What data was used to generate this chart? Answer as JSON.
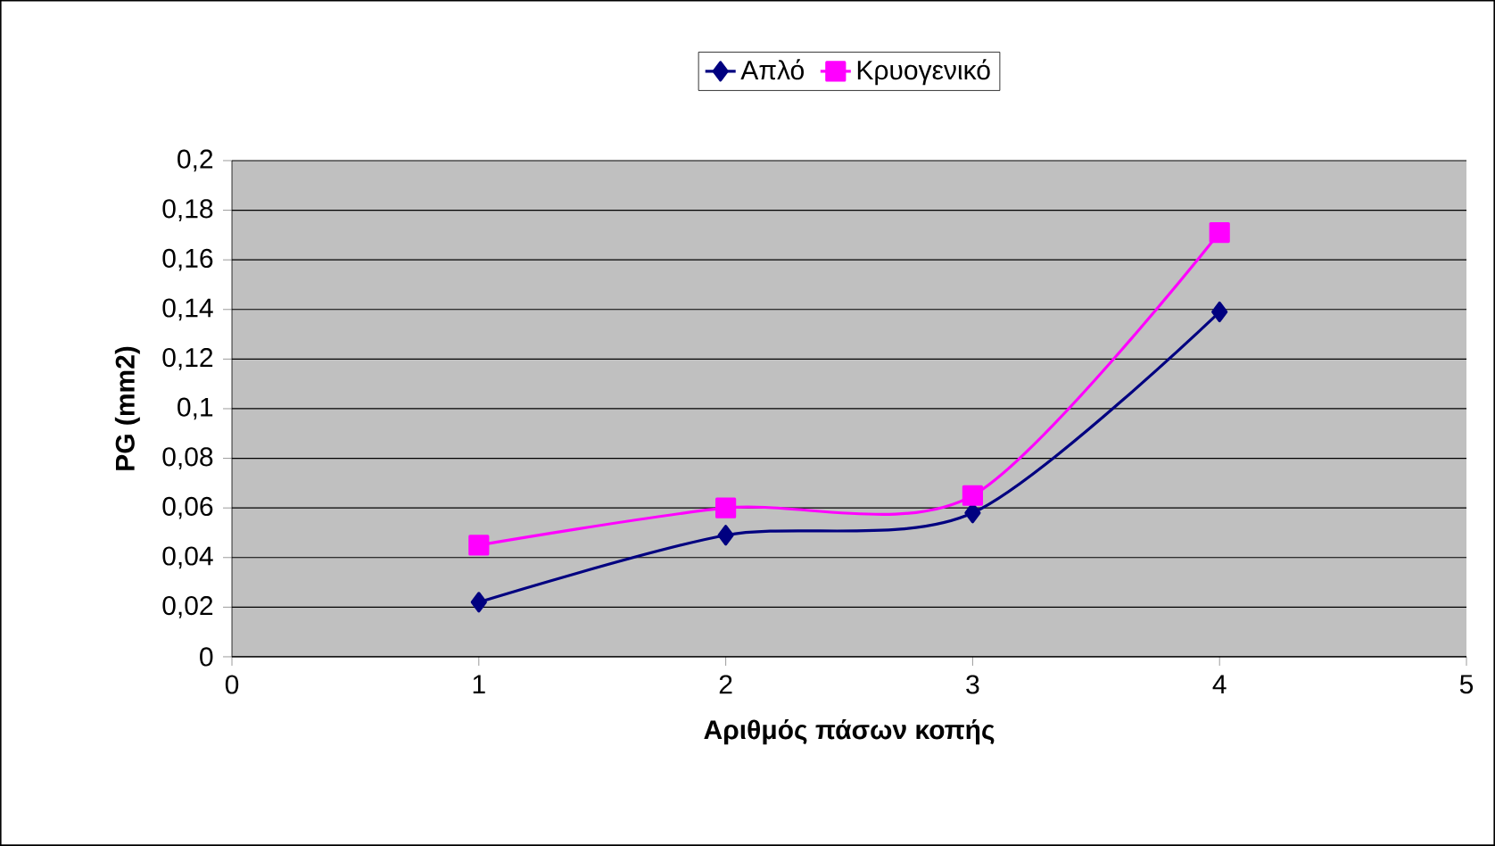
{
  "chart_data": {
    "type": "line",
    "xlabel": "Αριθμός πάσων κοπής",
    "ylabel": "PG (mm2)",
    "x": [
      1,
      2,
      3,
      4
    ],
    "series": [
      {
        "name": "Απλό",
        "color": "#000080",
        "marker": "diamond",
        "values": [
          0.022,
          0.049,
          0.058,
          0.139
        ]
      },
      {
        "name": "Κρυογενικό",
        "color": "#ff00ff",
        "marker": "square",
        "values": [
          0.045,
          0.06,
          0.065,
          0.171
        ]
      }
    ],
    "xlim": [
      0,
      5
    ],
    "ylim": [
      0,
      0.2
    ],
    "xticks": [
      0,
      1,
      2,
      3,
      4,
      5
    ],
    "yticks": [
      0,
      {
        "value": 0.02,
        "label": "0,02"
      },
      {
        "value": 0.04,
        "label": "0,04"
      },
      {
        "value": 0.06,
        "label": "0,06"
      },
      {
        "value": 0.08,
        "label": "0,08"
      },
      {
        "value": 0.1,
        "label": "0,1"
      },
      {
        "value": 0.12,
        "label": "0,12"
      },
      {
        "value": 0.14,
        "label": "0,14"
      },
      {
        "value": 0.16,
        "label": "0,16"
      },
      {
        "value": 0.18,
        "label": "0,18"
      },
      {
        "value": 0.2,
        "label": "0,2"
      }
    ],
    "grid": "y",
    "legend": "top",
    "line_style": "solid"
  }
}
